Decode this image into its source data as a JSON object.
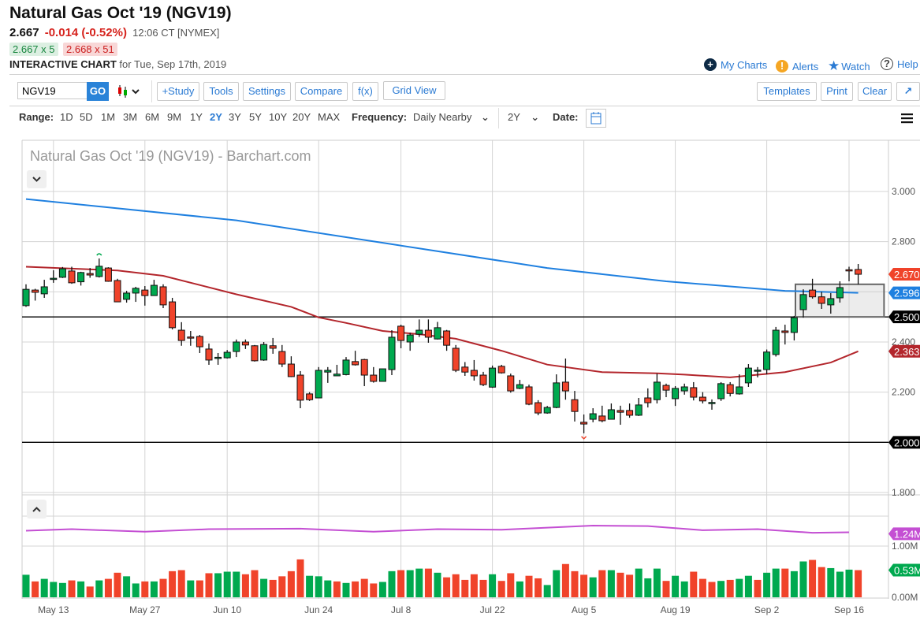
{
  "header": {
    "title": "Natural Gas Oct '19 (NGV19)",
    "last": "2.667",
    "change": "-0.014 (-0.52%)",
    "time": "12:06 CT [NYMEX]",
    "bid": "2.667 x 5",
    "ask": "2.668 x 51",
    "chart_label": "INTERACTIVE CHART",
    "chart_date": "for Tue, Sep 17th, 2019",
    "links": {
      "my_charts": "My Charts",
      "alerts": "Alerts",
      "watch": "Watch",
      "help": "Help"
    }
  },
  "toolbar": {
    "symbol_value": "NGV19",
    "go": "GO",
    "buttons": [
      "+Study",
      "Tools",
      "Settings",
      "Compare",
      "f(x)",
      "Grid View"
    ],
    "right_buttons": [
      "Templates",
      "Print",
      "Clear"
    ]
  },
  "range_bar": {
    "range_label": "Range:",
    "ranges": [
      "1D",
      "5D",
      "1M",
      "3M",
      "6M",
      "9M",
      "1Y",
      "2Y",
      "3Y",
      "5Y",
      "10Y",
      "20Y",
      "MAX"
    ],
    "active_range": "2Y",
    "frequency_label": "Frequency:",
    "frequency_value": "Daily Nearby",
    "period_value": "2Y",
    "date_label": "Date:"
  },
  "colors": {
    "up": "#00a94f",
    "down": "#f0432a",
    "ma200": "#1f80e0",
    "ma50": "#b3262c",
    "vol_avg": "#c44fd3",
    "accent": "#2a7ad3"
  },
  "chart_data": {
    "type": "candlestick",
    "title": "Natural Gas Oct '19 (NGV19) - Barchart.com",
    "ylim": [
      1.8,
      3.05
    ],
    "price_ticks": [
      "3.000",
      "2.800",
      "2.400",
      "2.200",
      "1.800"
    ],
    "price_tick_values": [
      3.0,
      2.8,
      2.4,
      2.2,
      1.8
    ],
    "grid_values": [
      1.8,
      2.0,
      2.2,
      2.4,
      2.6,
      2.8,
      3.0
    ],
    "x_labels": [
      {
        "label": "May 13",
        "index": 3
      },
      {
        "label": "May 27",
        "index": 13
      },
      {
        "label": "Jun 10",
        "index": 22
      },
      {
        "label": "Jun 24",
        "index": 32
      },
      {
        "label": "Jul 8",
        "index": 41
      },
      {
        "label": "Jul 22",
        "index": 51
      },
      {
        "label": "Aug 5",
        "index": 61
      },
      {
        "label": "Aug 19",
        "index": 71
      },
      {
        "label": "Sep 2",
        "index": 81
      },
      {
        "label": "Sep 16",
        "index": 90
      }
    ],
    "horizontal_lines": [
      2.5,
      2.0
    ],
    "consolidation_box": {
      "from_index": 85,
      "to_index": 94,
      "low": 2.5,
      "high": 2.63
    },
    "badges": [
      {
        "text": "2.670",
        "value": 2.67,
        "color": "#f0432a"
      },
      {
        "text": "2.596",
        "value": 2.596,
        "color": "#1f80e0"
      },
      {
        "text": "2.500",
        "value": 2.5,
        "color": "#000000"
      },
      {
        "text": "2.363",
        "value": 2.363,
        "color": "#b3262c"
      },
      {
        "text": "2.000",
        "value": 2.0,
        "color": "#000000"
      }
    ],
    "candles_ohlc": [
      [
        2.545,
        2.63,
        2.54,
        2.61
      ],
      [
        2.607,
        2.612,
        2.565,
        2.598
      ],
      [
        2.592,
        2.648,
        2.576,
        2.62
      ],
      [
        2.65,
        2.686,
        2.636,
        2.654
      ],
      [
        2.658,
        2.699,
        2.655,
        2.692
      ],
      [
        2.683,
        2.7,
        2.632,
        2.636
      ],
      [
        2.64,
        2.68,
        2.625,
        2.677
      ],
      [
        2.673,
        2.695,
        2.656,
        2.667
      ],
      [
        2.661,
        2.733,
        2.657,
        2.702
      ],
      [
        2.695,
        2.698,
        2.64,
        2.642
      ],
      [
        2.645,
        2.652,
        2.56,
        2.56
      ],
      [
        2.57,
        2.604,
        2.557,
        2.595
      ],
      [
        2.595,
        2.62,
        2.56,
        2.614
      ],
      [
        2.607,
        2.623,
        2.545,
        2.585
      ],
      [
        2.585,
        2.648,
        2.585,
        2.626
      ],
      [
        2.62,
        2.63,
        2.535,
        2.548
      ],
      [
        2.56,
        2.576,
        2.45,
        2.457
      ],
      [
        2.447,
        2.479,
        2.385,
        2.406
      ],
      [
        2.42,
        2.444,
        2.385,
        2.418
      ],
      [
        2.422,
        2.428,
        2.356,
        2.381
      ],
      [
        2.372,
        2.394,
        2.309,
        2.328
      ],
      [
        2.337,
        2.356,
        2.309,
        2.339
      ],
      [
        2.337,
        2.368,
        2.334,
        2.359
      ],
      [
        2.362,
        2.41,
        2.34,
        2.4
      ],
      [
        2.4,
        2.41,
        2.372,
        2.388
      ],
      [
        2.385,
        2.388,
        2.322,
        2.325
      ],
      [
        2.328,
        2.4,
        2.325,
        2.39
      ],
      [
        2.385,
        2.416,
        2.353,
        2.375
      ],
      [
        2.362,
        2.388,
        2.3,
        2.312
      ],
      [
        2.312,
        2.343,
        2.26,
        2.262
      ],
      [
        2.268,
        2.284,
        2.136,
        2.168
      ],
      [
        2.193,
        2.2,
        2.165,
        2.17
      ],
      [
        2.177,
        2.3,
        2.177,
        2.287
      ],
      [
        2.28,
        2.3,
        2.237,
        2.287
      ],
      [
        2.265,
        2.309,
        2.265,
        2.272
      ],
      [
        2.27,
        2.34,
        2.267,
        2.328
      ],
      [
        2.322,
        2.365,
        2.306,
        2.309
      ],
      [
        2.33,
        2.333,
        2.224,
        2.268
      ],
      [
        2.268,
        2.3,
        2.238,
        2.243
      ],
      [
        2.243,
        2.293,
        2.243,
        2.293
      ],
      [
        2.29,
        2.447,
        2.268,
        2.419
      ],
      [
        2.463,
        2.469,
        2.375,
        2.406
      ],
      [
        2.4,
        2.437,
        2.365,
        2.428
      ],
      [
        2.431,
        2.49,
        2.42,
        2.447
      ],
      [
        2.447,
        2.49,
        2.397,
        2.419
      ],
      [
        2.412,
        2.48,
        2.41,
        2.457
      ],
      [
        2.444,
        2.448,
        2.365,
        2.387
      ],
      [
        2.375,
        2.388,
        2.28,
        2.287
      ],
      [
        2.3,
        2.32,
        2.265,
        2.28
      ],
      [
        2.287,
        2.328,
        2.246,
        2.265
      ],
      [
        2.268,
        2.281,
        2.224,
        2.23
      ],
      [
        2.22,
        2.306,
        2.217,
        2.296
      ],
      [
        2.303,
        2.309,
        2.274,
        2.277
      ],
      [
        2.265,
        2.274,
        2.198,
        2.205
      ],
      [
        2.215,
        2.249,
        2.212,
        2.23
      ],
      [
        2.221,
        2.23,
        2.148,
        2.152
      ],
      [
        2.158,
        2.168,
        2.108,
        2.117
      ],
      [
        2.117,
        2.145,
        2.114,
        2.139
      ],
      [
        2.139,
        2.271,
        2.136,
        2.237
      ],
      [
        2.24,
        2.334,
        2.17,
        2.205
      ],
      [
        2.17,
        2.205,
        2.083,
        2.123
      ],
      [
        2.08,
        2.111,
        2.036,
        2.073
      ],
      [
        2.092,
        2.136,
        2.08,
        2.114
      ],
      [
        2.105,
        2.146,
        2.08,
        2.086
      ],
      [
        2.092,
        2.155,
        2.092,
        2.13
      ],
      [
        2.127,
        2.146,
        2.07,
        2.12
      ],
      [
        2.127,
        2.155,
        2.098,
        2.108
      ],
      [
        2.108,
        2.177,
        2.105,
        2.149
      ],
      [
        2.177,
        2.215,
        2.139,
        2.158
      ],
      [
        2.17,
        2.274,
        2.155,
        2.24
      ],
      [
        2.227,
        2.234,
        2.18,
        2.208
      ],
      [
        2.174,
        2.224,
        2.145,
        2.215
      ],
      [
        2.205,
        2.234,
        2.19,
        2.221
      ],
      [
        2.218,
        2.24,
        2.167,
        2.18
      ],
      [
        2.18,
        2.2,
        2.155,
        2.165
      ],
      [
        2.157,
        2.171,
        2.13,
        2.159
      ],
      [
        2.174,
        2.24,
        2.165,
        2.234
      ],
      [
        2.23,
        2.24,
        2.183,
        2.195
      ],
      [
        2.193,
        2.271,
        2.19,
        2.221
      ],
      [
        2.237,
        2.312,
        2.221,
        2.296
      ],
      [
        2.286,
        2.3,
        2.259,
        2.288
      ],
      [
        2.29,
        2.37,
        2.271,
        2.36
      ],
      [
        2.35,
        2.46,
        2.342,
        2.447
      ],
      [
        2.444,
        2.469,
        2.39,
        2.438
      ],
      [
        2.438,
        2.504,
        2.406,
        2.497
      ],
      [
        2.529,
        2.61,
        2.497,
        2.589
      ],
      [
        2.607,
        2.652,
        2.573,
        2.58
      ],
      [
        2.58,
        2.6,
        2.532,
        2.554
      ],
      [
        2.548,
        2.595,
        2.513,
        2.573
      ],
      [
        2.576,
        2.642,
        2.557,
        2.617
      ],
      [
        2.688,
        2.7,
        2.642,
        2.684
      ],
      [
        2.689,
        2.711,
        2.63,
        2.67
      ]
    ],
    "high_marker_index": 8,
    "low_marker_index": 61,
    "ma200": [
      [
        0,
        2.97
      ],
      [
        23,
        2.885
      ],
      [
        40,
        2.79
      ],
      [
        57,
        2.695
      ],
      [
        70,
        2.642
      ],
      [
        83,
        2.604
      ],
      [
        91,
        2.596
      ]
    ],
    "ma50": [
      [
        0,
        2.7
      ],
      [
        10,
        2.685
      ],
      [
        15,
        2.664
      ],
      [
        23,
        2.59
      ],
      [
        29,
        2.54
      ],
      [
        32,
        2.498
      ],
      [
        35,
        2.476
      ],
      [
        39,
        2.444
      ],
      [
        43,
        2.431
      ],
      [
        47,
        2.413
      ],
      [
        52,
        2.365
      ],
      [
        57,
        2.31
      ],
      [
        63,
        2.28
      ],
      [
        69,
        2.275
      ],
      [
        72,
        2.27
      ],
      [
        77,
        2.259
      ],
      [
        83,
        2.28
      ],
      [
        88,
        2.318
      ],
      [
        91,
        2.363
      ]
    ],
    "volume": {
      "ylim": [
        0,
        2.0
      ],
      "ticks": [
        "1.00M",
        "0.00M"
      ],
      "tick_values": [
        1.0,
        0.0
      ],
      "badges": [
        {
          "text": "1.24M",
          "value": 1.24,
          "color": "#c44fd3"
        },
        {
          "text": "0.53M",
          "value": 0.53,
          "color": "#00a94f"
        }
      ],
      "values_millions": [
        0.44,
        0.31,
        0.36,
        0.3,
        0.28,
        0.33,
        0.31,
        0.21,
        0.33,
        0.36,
        0.48,
        0.41,
        0.27,
        0.31,
        0.31,
        0.36,
        0.51,
        0.53,
        0.33,
        0.33,
        0.47,
        0.47,
        0.5,
        0.5,
        0.45,
        0.53,
        0.36,
        0.34,
        0.41,
        0.51,
        0.74,
        0.42,
        0.41,
        0.33,
        0.31,
        0.28,
        0.31,
        0.36,
        0.27,
        0.3,
        0.51,
        0.53,
        0.53,
        0.56,
        0.56,
        0.48,
        0.39,
        0.45,
        0.34,
        0.45,
        0.34,
        0.45,
        0.32,
        0.47,
        0.31,
        0.42,
        0.37,
        0.24,
        0.53,
        0.65,
        0.51,
        0.44,
        0.39,
        0.53,
        0.53,
        0.48,
        0.44,
        0.56,
        0.37,
        0.56,
        0.32,
        0.42,
        0.31,
        0.5,
        0.36,
        0.3,
        0.32,
        0.34,
        0.36,
        0.42,
        0.34,
        0.48,
        0.56,
        0.56,
        0.51,
        0.7,
        0.73,
        0.59,
        0.57,
        0.5,
        0.54,
        0.53
      ],
      "average": [
        [
          0,
          1.3
        ],
        [
          5,
          1.33
        ],
        [
          13,
          1.28
        ],
        [
          20,
          1.33
        ],
        [
          30,
          1.34
        ],
        [
          38,
          1.28
        ],
        [
          45,
          1.33
        ],
        [
          52,
          1.32
        ],
        [
          62,
          1.4
        ],
        [
          68,
          1.39
        ],
        [
          74,
          1.31
        ],
        [
          80,
          1.33
        ],
        [
          86,
          1.26
        ],
        [
          90,
          1.27
        ]
      ]
    }
  }
}
